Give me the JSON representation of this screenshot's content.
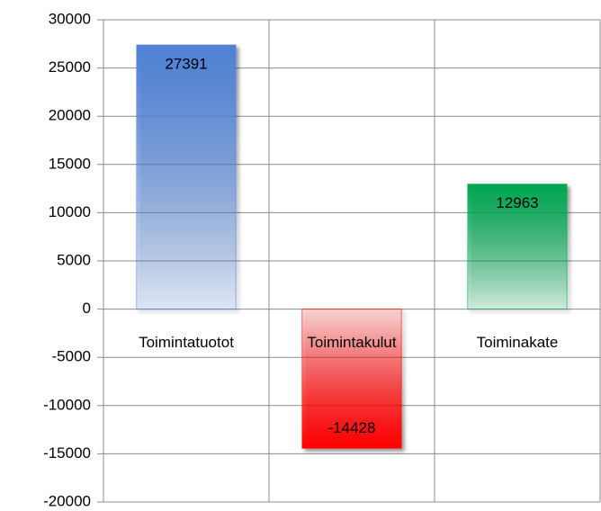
{
  "chart_data": {
    "type": "bar",
    "categories": [
      "Toimintatuotot",
      "Toimintakulut",
      "Toiminakate"
    ],
    "values": [
      27391,
      -14428,
      12963
    ],
    "colors": [
      "#4f81d5",
      "#ff0000",
      "#00a651"
    ],
    "ylim": [
      -20000,
      30000
    ],
    "yticks": [
      -20000,
      -15000,
      -10000,
      -5000,
      0,
      5000,
      10000,
      15000,
      20000,
      25000,
      30000
    ],
    "grid": true
  }
}
